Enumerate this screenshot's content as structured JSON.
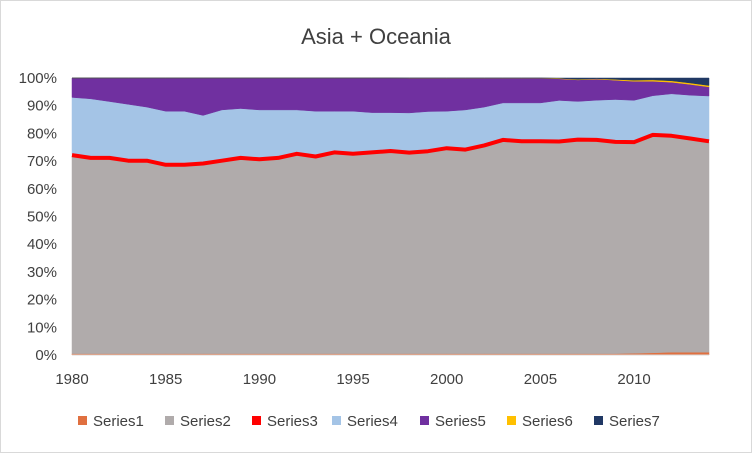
{
  "chart_data": {
    "type": "area",
    "stacked": "percent",
    "title": "Asia + Oceania",
    "xlabel": "",
    "ylabel": "",
    "x": [
      1980,
      1981,
      1982,
      1983,
      1984,
      1985,
      1986,
      1987,
      1988,
      1989,
      1990,
      1991,
      1992,
      1993,
      1994,
      1995,
      1996,
      1997,
      1998,
      1999,
      2000,
      2001,
      2002,
      2003,
      2004,
      2005,
      2006,
      2007,
      2008,
      2009,
      2010,
      2011,
      2012,
      2013,
      2014
    ],
    "xlim": [
      1980,
      2014
    ],
    "ylim": [
      0,
      100
    ],
    "x_ticks": [
      "1980",
      "1985",
      "1990",
      "1995",
      "2000",
      "2005",
      "2010"
    ],
    "y_ticks": [
      "0%",
      "10%",
      "20%",
      "30%",
      "40%",
      "50%",
      "60%",
      "70%",
      "80%",
      "90%",
      "100%"
    ],
    "grid": "none",
    "legend_position": "bottom",
    "series": [
      {
        "name": "Series1",
        "color": "#e07040",
        "values": [
          0.5,
          0.5,
          0.5,
          0.5,
          0.5,
          0.5,
          0.5,
          0.5,
          0.5,
          0.5,
          0.5,
          0.5,
          0.5,
          0.5,
          0.5,
          0.5,
          0.5,
          0.5,
          0.5,
          0.5,
          0.5,
          0.5,
          0.5,
          0.5,
          0.5,
          0.5,
          0.5,
          0.5,
          0.5,
          0.5,
          0.6,
          0.8,
          1.0,
          1.0,
          1.0
        ]
      },
      {
        "name": "Series2",
        "color": "#b0abab",
        "values": [
          71.5,
          70.5,
          70.5,
          69.5,
          69.5,
          68.0,
          68.0,
          68.5,
          69.5,
          70.5,
          70.0,
          70.5,
          72.0,
          71.0,
          72.5,
          72.0,
          72.5,
          73.0,
          72.5,
          73.0,
          74.0,
          73.5,
          75.0,
          77.0,
          76.5,
          76.5,
          76.5,
          77.5,
          77.0,
          76.5,
          76.5,
          78.5,
          78.0,
          77.0,
          76.0
        ]
      },
      {
        "name": "Series3",
        "color": "#ff0000",
        "values": [
          0.3,
          0.3,
          0.3,
          0.3,
          0.3,
          0.3,
          0.3,
          0.3,
          0.3,
          0.3,
          0.3,
          0.3,
          0.3,
          0.3,
          0.3,
          0.3,
          0.3,
          0.3,
          0.3,
          0.3,
          0.3,
          0.3,
          0.3,
          0.3,
          0.3,
          0.3,
          0.3,
          0.3,
          0.3,
          0.3,
          0.3,
          0.3,
          0.3,
          0.3,
          0.3
        ]
      },
      {
        "name": "Series4",
        "color": "#a4c4e6",
        "values": [
          20.7,
          21.2,
          20.2,
          20.2,
          19.2,
          19.2,
          19.2,
          17.2,
          18.2,
          17.7,
          17.7,
          17.2,
          15.7,
          16.2,
          14.7,
          15.2,
          14.2,
          13.7,
          14.2,
          14.2,
          13.2,
          14.2,
          13.7,
          13.2,
          13.7,
          13.7,
          14.7,
          13.7,
          14.2,
          15.2,
          15.0,
          14.0,
          15.0,
          15.5,
          16.2
        ]
      },
      {
        "name": "Series5",
        "color": "#7030a0",
        "values": [
          7.0,
          7.5,
          8.5,
          9.5,
          10.5,
          12.0,
          12.0,
          13.5,
          11.5,
          11.0,
          11.5,
          11.5,
          11.5,
          12.0,
          12.0,
          12.0,
          12.5,
          12.5,
          12.5,
          12.0,
          11.9,
          11.4,
          10.4,
          8.9,
          8.9,
          8.9,
          7.8,
          7.8,
          7.6,
          7.0,
          6.9,
          5.2,
          4.2,
          3.9,
          3.3
        ]
      },
      {
        "name": "Series6",
        "color": "#ffc000",
        "values": [
          0,
          0,
          0,
          0,
          0,
          0,
          0,
          0,
          0,
          0,
          0,
          0,
          0,
          0,
          0,
          0,
          0,
          0,
          0.1,
          0.1,
          0.1,
          0.1,
          0.1,
          0.1,
          0.1,
          0.1,
          0.2,
          0.2,
          0.2,
          0.3,
          0.4,
          0.5,
          0.5,
          0.5,
          0.5
        ]
      },
      {
        "name": "Series7",
        "color": "#203864",
        "values": [
          0,
          0,
          0,
          0,
          0,
          0,
          0,
          0,
          0,
          0,
          0,
          0,
          0,
          0,
          0,
          0,
          0,
          0,
          0,
          0,
          0,
          0,
          0,
          0,
          0,
          0,
          0.1,
          0.5,
          0.2,
          0.5,
          0.8,
          0.7,
          1.0,
          1.8,
          2.7
        ]
      }
    ]
  }
}
